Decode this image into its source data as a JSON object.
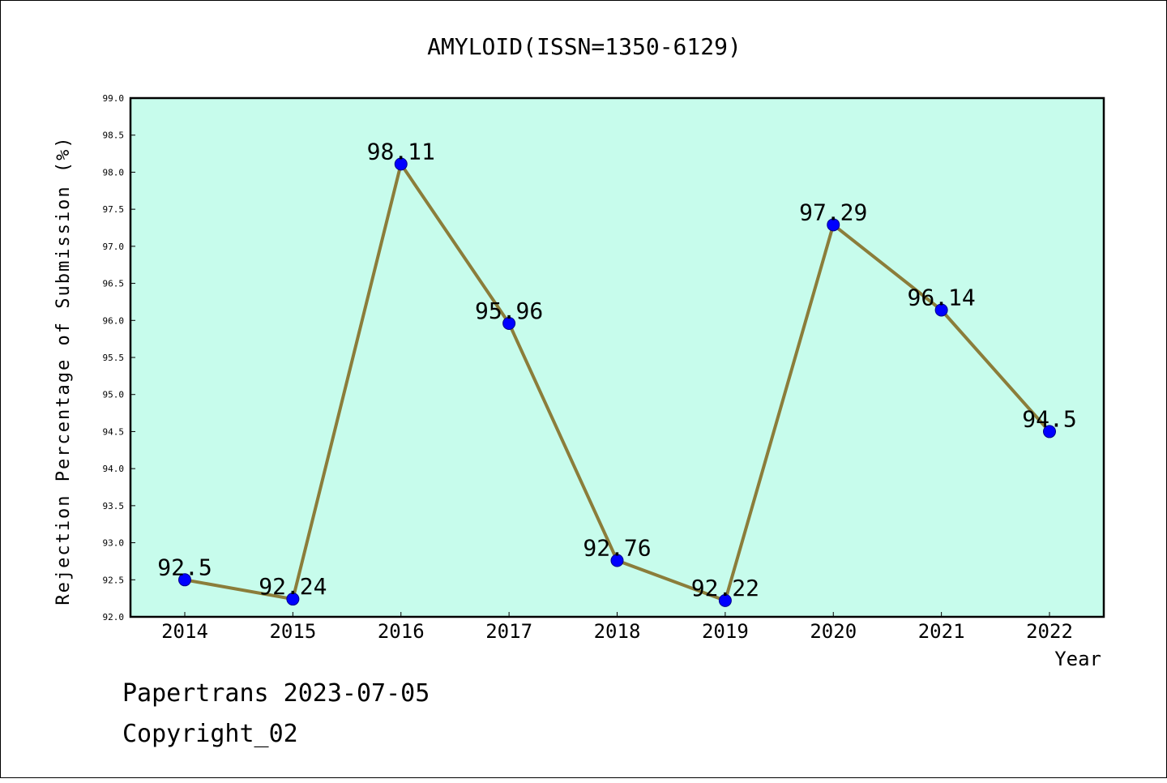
{
  "chart_data": {
    "type": "line",
    "title": "AMYLOID(ISSN=1350-6129)",
    "xlabel": "Year",
    "ylabel": "Rejection Percentage of Submission (%)",
    "categories": [
      "2014",
      "2015",
      "2016",
      "2017",
      "2018",
      "2019",
      "2020",
      "2021",
      "2022"
    ],
    "values": [
      92.5,
      92.24,
      98.11,
      95.96,
      92.76,
      92.22,
      97.29,
      96.14,
      94.5
    ],
    "data_labels": [
      "92.5",
      "92.24",
      "98.11",
      "95.96",
      "92.76",
      "92.22",
      "97.29",
      "96.14",
      "94.5"
    ],
    "ylim": [
      92.0,
      99.0
    ],
    "yticks": [
      "92.0",
      "92.5",
      "93.0",
      "93.5",
      "94.0",
      "94.5",
      "95.0",
      "95.5",
      "96.0",
      "96.5",
      "97.0",
      "97.5",
      "98.0",
      "98.5",
      "99.0"
    ],
    "grid": false,
    "colors": {
      "plot_background": "#c7fcec",
      "line": "#8b7d3a",
      "marker": "#0000ff"
    }
  },
  "footer": {
    "line1": "Papertrans 2023-07-05",
    "line2": "Copyright_02"
  }
}
